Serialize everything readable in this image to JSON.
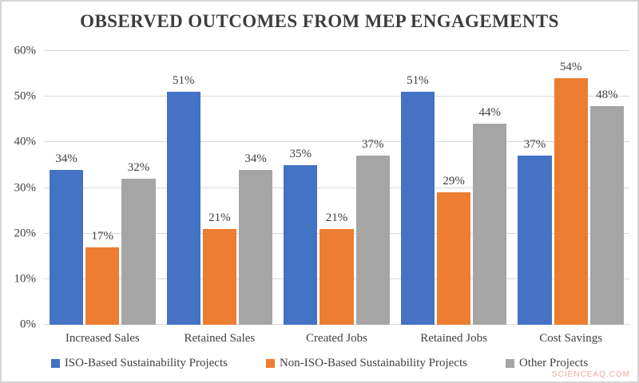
{
  "title": "OBSERVED OUTCOMES FROM MEP ENGAGEMENTS",
  "watermark": "SCIENCEAQ.COM",
  "colors": {
    "series_blue": "#4472C4",
    "series_orange": "#ED7D31",
    "series_gray": "#A5A5A5",
    "text": "#404040",
    "gridline": "#D9D9D9",
    "frame_border": "#D6D6D6",
    "watermark": "#EFA6A2"
  },
  "chart_data": {
    "type": "bar",
    "title": "OBSERVED OUTCOMES FROM MEP ENGAGEMENTS",
    "categories": [
      "Increased Sales",
      "Retained Sales",
      "Created Jobs",
      "Retained Jobs",
      "Cost Savings"
    ],
    "series": [
      {
        "name": "ISO-Based Sustainability Projects",
        "color": "#4472C4",
        "values": [
          34,
          51,
          35,
          51,
          37
        ]
      },
      {
        "name": "Non-ISO-Based Sustainability Projects",
        "color": "#ED7D31",
        "values": [
          17,
          21,
          21,
          29,
          54
        ]
      },
      {
        "name": "Other Projects",
        "color": "#A5A5A5",
        "values": [
          32,
          34,
          37,
          44,
          48
        ]
      }
    ],
    "xlabel": "",
    "ylabel": "",
    "ylim": [
      0,
      60
    ],
    "ytick_step": 10,
    "ytick_labels": [
      "0%",
      "10%",
      "20%",
      "30%",
      "40%",
      "50%",
      "60%"
    ],
    "ytick_format": "percent",
    "grid": true,
    "data_labels": true,
    "data_label_format": "percent",
    "legend_position": "bottom"
  }
}
